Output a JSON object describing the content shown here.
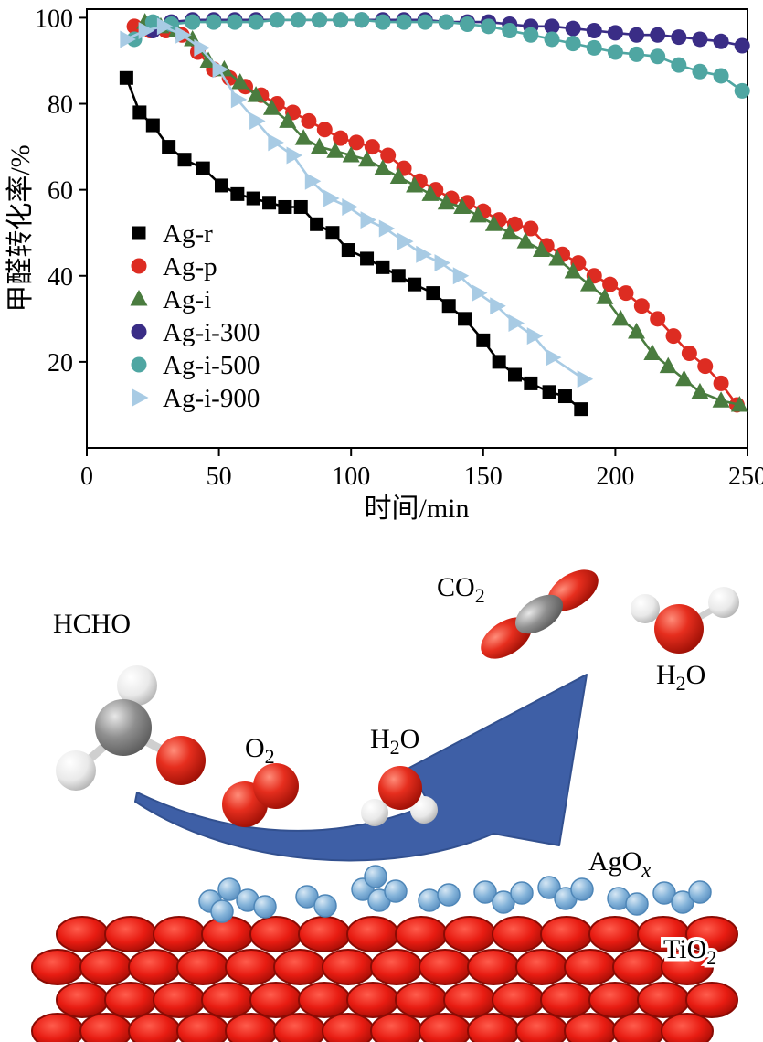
{
  "chart_data": {
    "type": "line",
    "title": "",
    "xlabel": "时间/min",
    "ylabel": "甲醛转化率/%",
    "xlim": [
      0,
      250
    ],
    "ylim": [
      0,
      102
    ],
    "xticks": [
      0,
      50,
      100,
      150,
      200,
      250
    ],
    "yticks": [
      20,
      40,
      60,
      80,
      100
    ],
    "grid": false,
    "legend_position": "center-left",
    "series": [
      {
        "name": "Ag-r",
        "color": "#000000",
        "marker": "square",
        "x": [
          15,
          20,
          25,
          31,
          37,
          44,
          51,
          57,
          63,
          69,
          75,
          81,
          87,
          93,
          99,
          106,
          112,
          118,
          124,
          131,
          137,
          143,
          150,
          156,
          162,
          168,
          175,
          181,
          187
        ],
        "y": [
          86,
          78,
          75,
          70,
          67,
          65,
          61,
          59,
          58,
          57,
          56,
          56,
          52,
          50,
          46,
          44,
          42,
          40,
          38,
          36,
          33,
          30,
          25,
          20,
          17,
          15,
          13,
          12,
          9
        ]
      },
      {
        "name": "Ag-p",
        "color": "#dd2c22",
        "marker": "circle",
        "x": [
          18,
          24,
          30,
          36,
          42,
          48,
          54,
          60,
          66,
          72,
          78,
          84,
          90,
          96,
          102,
          108,
          114,
          120,
          126,
          132,
          138,
          144,
          150,
          156,
          162,
          168,
          174,
          180,
          186,
          192,
          198,
          204,
          210,
          216,
          222,
          228,
          234,
          240,
          246
        ],
        "y": [
          98,
          97,
          97,
          96,
          92,
          88,
          86,
          84,
          82,
          80,
          78,
          76,
          74,
          72,
          71,
          70,
          68,
          65,
          62,
          60,
          58,
          57,
          55,
          53,
          52,
          51,
          47,
          45,
          43,
          40,
          38,
          36,
          33,
          30,
          26,
          22,
          19,
          15,
          10
        ]
      },
      {
        "name": "Ag-i",
        "color": "#4a7c3f",
        "marker": "triangle-up",
        "x": [
          22,
          28,
          34,
          40,
          46,
          52,
          58,
          64,
          70,
          76,
          82,
          88,
          94,
          100,
          106,
          112,
          118,
          124,
          130,
          136,
          142,
          148,
          154,
          160,
          166,
          172,
          178,
          184,
          190,
          196,
          202,
          208,
          214,
          220,
          226,
          232,
          240,
          247
        ],
        "y": [
          99,
          98,
          97,
          95,
          90,
          88,
          85,
          82,
          79,
          76,
          72,
          70,
          69,
          68,
          67,
          65,
          63,
          61,
          59,
          57,
          56,
          54,
          52,
          50,
          48,
          46,
          44,
          41,
          38,
          35,
          30,
          27,
          22,
          19,
          16,
          13,
          11,
          10
        ]
      },
      {
        "name": "Ag-i-300",
        "color": "#3a2d86",
        "marker": "circle",
        "x": [
          25,
          32,
          40,
          48,
          56,
          64,
          72,
          80,
          88,
          96,
          104,
          112,
          120,
          128,
          136,
          144,
          152,
          160,
          168,
          176,
          184,
          192,
          200,
          208,
          216,
          224,
          232,
          240,
          248
        ],
        "y": [
          97,
          99,
          99.5,
          99.5,
          99.5,
          99.5,
          99.5,
          99.5,
          99.5,
          99.5,
          99.5,
          99.5,
          99.5,
          99.5,
          99,
          99,
          99,
          98.5,
          98,
          98,
          97.5,
          97,
          96.5,
          96,
          96,
          95.5,
          95,
          94.5,
          93.5
        ]
      },
      {
        "name": "Ag-i-500",
        "color": "#4fa6a2",
        "marker": "circle",
        "x": [
          18,
          25,
          32,
          40,
          48,
          56,
          64,
          72,
          80,
          88,
          96,
          104,
          112,
          120,
          128,
          136,
          144,
          152,
          160,
          168,
          176,
          184,
          192,
          200,
          208,
          216,
          224,
          232,
          240,
          248
        ],
        "y": [
          95,
          99,
          98.5,
          99,
          99,
          99,
          99,
          99.5,
          99.5,
          99.5,
          99.5,
          99.5,
          99,
          99,
          99,
          99,
          98.5,
          98,
          97,
          96,
          95,
          94,
          93,
          92,
          91.5,
          91,
          89,
          87.5,
          86.5,
          83
        ]
      },
      {
        "name": "Ag-i-900",
        "color": "#a8cbe4",
        "marker": "triangle-right",
        "x": [
          15,
          22,
          29,
          36,
          43,
          50,
          57,
          64,
          71,
          78,
          85,
          92,
          99,
          106,
          113,
          120,
          127,
          134,
          141,
          148,
          155,
          162,
          169,
          176,
          188
        ],
        "y": [
          95,
          97,
          98,
          96,
          93,
          88,
          81,
          76,
          71,
          68,
          62,
          58,
          56,
          53,
          51,
          48,
          45,
          43,
          40,
          36,
          33,
          29,
          26,
          21,
          16
        ]
      }
    ]
  },
  "diagram": {
    "arrow_color": "#3e5fa6",
    "agox_color": "#85b4da",
    "tio2_color": "#e81c12",
    "labels": {
      "hcho": {
        "main": "HCHO",
        "sub": "",
        "tail": ""
      },
      "o2": {
        "main": "O",
        "sub": "2",
        "tail": ""
      },
      "h2o_left": {
        "main": "H",
        "sub": "2",
        "tail": "O"
      },
      "co2": {
        "main": "CO",
        "sub": "2",
        "tail": ""
      },
      "h2o_right": {
        "main": "H",
        "sub": "2",
        "tail": "O"
      },
      "agox": {
        "main": "AgO",
        "sub": "x",
        "tail": ""
      },
      "tio2": {
        "main": "TiO",
        "sub": "2",
        "tail": ""
      }
    }
  }
}
